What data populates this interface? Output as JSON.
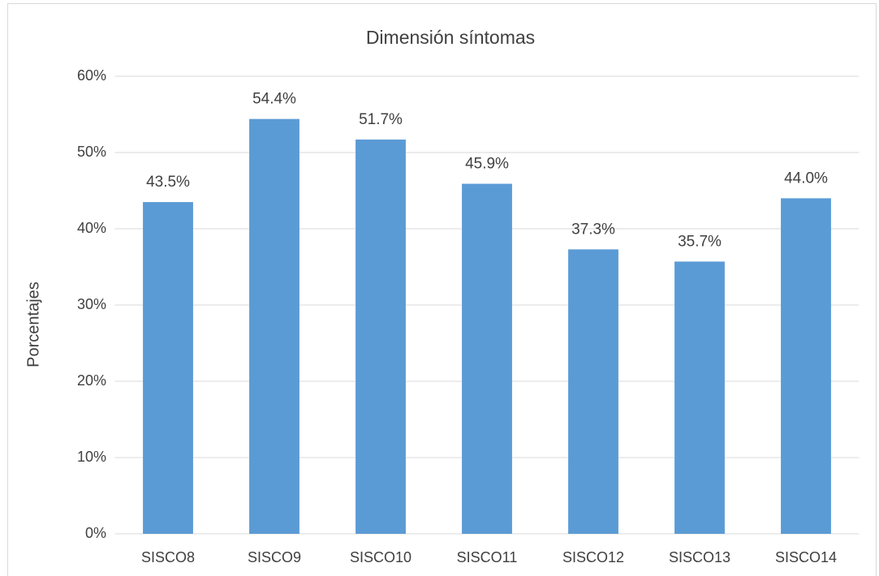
{
  "chart_data": {
    "type": "bar",
    "title": "Dimensión síntomas",
    "y_label": "Porcentajes",
    "categories": [
      "SISCO8",
      "SISCO9",
      "SISCO10",
      "SISCO11",
      "SISCO12",
      "SISCO13",
      "SISCO14"
    ],
    "values": [
      43.5,
      54.4,
      51.7,
      45.9,
      37.3,
      35.7,
      44.0
    ],
    "value_labels": [
      "43.5%",
      "54.4%",
      "51.7%",
      "45.9%",
      "37.3%",
      "35.7%",
      "44.0%"
    ],
    "color": "#5b9bd5",
    "ylim": [
      0,
      60
    ],
    "yticks": [
      {
        "value": 0,
        "label": "0%"
      },
      {
        "value": 10,
        "label": "10%"
      },
      {
        "value": 20,
        "label": "20%"
      },
      {
        "value": 30,
        "label": "30%"
      },
      {
        "value": 40,
        "label": "40%"
      },
      {
        "value": 50,
        "label": "50%"
      },
      {
        "value": 60,
        "label": "60%"
      }
    ],
    "grid": true
  }
}
